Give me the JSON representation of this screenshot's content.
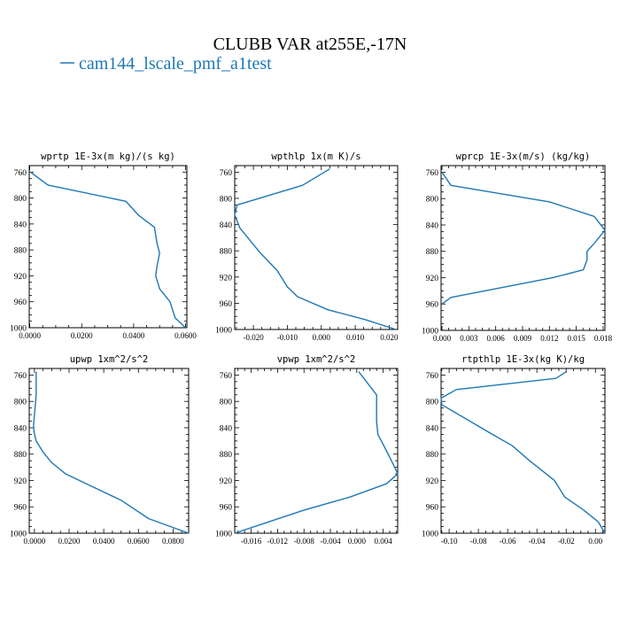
{
  "title": "CLUBB VAR at255E,-17N",
  "legend": {
    "label": "cam144_lscale_pmf_a1test",
    "color": "#1f77b4"
  },
  "colors": {
    "line": "#1f77b4",
    "axis": "#000000",
    "text": "#000000"
  },
  "chart_data": [
    {
      "type": "line",
      "title": "wprtp  1E-3x(m kg)/(s kg)",
      "xlim": [
        -0.0002,
        0.0605
      ],
      "ylim": [
        1000,
        750
      ],
      "xticks": [
        0.0,
        0.02,
        0.04,
        0.06
      ],
      "xtick_labels": [
        "0.0000",
        "0.0200",
        "0.0400",
        "0.0600"
      ],
      "yticks": [
        760,
        800,
        840,
        880,
        920,
        960,
        1000
      ],
      "series": [
        {
          "name": "cam144_lscale_pmf_a1test",
          "x": [
            0.0003,
            0.007,
            0.037,
            0.042,
            0.048,
            0.049,
            0.05,
            0.049,
            0.0485,
            0.05,
            0.054,
            0.056,
            0.06
          ],
          "y": [
            760,
            780,
            805,
            827,
            845,
            870,
            885,
            905,
            920,
            940,
            960,
            985,
            1000
          ]
        }
      ]
    },
    {
      "type": "line",
      "title": "wpthlp  1x(m K)/s",
      "xlim": [
        -0.0255,
        0.0225
      ],
      "ylim": [
        1000,
        750
      ],
      "xticks": [
        -0.02,
        -0.01,
        0.0,
        0.01,
        0.02
      ],
      "xtick_labels": [
        "-0.020",
        "-0.010",
        "0.000",
        "0.010",
        "0.020"
      ],
      "yticks": [
        760,
        800,
        840,
        880,
        920,
        960,
        1000
      ],
      "series": [
        {
          "name": "cam144_lscale_pmf_a1test",
          "x": [
            0.0025,
            -0.0055,
            -0.0248,
            -0.0255,
            -0.024,
            -0.018,
            -0.013,
            -0.01,
            -0.007,
            0.002,
            0.013,
            0.022
          ],
          "y": [
            755,
            780,
            810,
            825,
            845,
            883,
            910,
            935,
            950,
            970,
            985,
            1000
          ]
        }
      ]
    },
    {
      "type": "line",
      "title": "wprcp  1E-3x(m/s) (kg/kg)",
      "xlim": [
        -0.0001,
        0.0182
      ],
      "ylim": [
        1000,
        750
      ],
      "xticks": [
        0.0,
        0.003,
        0.006,
        0.009,
        0.012,
        0.015,
        0.018
      ],
      "xtick_labels": [
        "0.000",
        "0.003",
        "0.006",
        "0.009",
        "0.012",
        "0.015",
        "0.018"
      ],
      "yticks": [
        760,
        800,
        840,
        880,
        920,
        960,
        1000
      ],
      "series": [
        {
          "name": "cam144_lscale_pmf_a1test",
          "x": [
            0.0,
            0.001,
            0.012,
            0.017,
            0.0182,
            0.017,
            0.0162,
            0.0162,
            0.0158,
            0.0124,
            0.001,
            0.0
          ],
          "y": [
            760,
            780,
            805,
            827,
            848,
            868,
            880,
            893,
            908,
            920,
            950,
            960
          ]
        }
      ]
    },
    {
      "type": "line",
      "title": "upwp  1xm^2/s^2",
      "xlim": [
        -0.003,
        0.089
      ],
      "ylim": [
        1000,
        750
      ],
      "xticks": [
        0.0,
        0.02,
        0.04,
        0.06,
        0.08
      ],
      "xtick_labels": [
        "0.0000",
        "0.0200",
        "0.0400",
        "0.0600",
        "0.0800"
      ],
      "yticks": [
        760,
        800,
        840,
        880,
        920,
        960,
        1000
      ],
      "series": [
        {
          "name": "cam144_lscale_pmf_a1test",
          "x": [
            0.001,
            0.001,
            0.0003,
            -0.0005,
            -0.0003,
            0.001,
            0.005,
            0.01,
            0.018,
            0.03,
            0.05,
            0.066,
            0.089
          ],
          "y": [
            755,
            790,
            812,
            835,
            845,
            860,
            877,
            893,
            910,
            925,
            950,
            978,
            1000
          ]
        }
      ]
    },
    {
      "type": "line",
      "title": "vpwp  1xm^2/s^2",
      "xlim": [
        -0.0185,
        0.0062
      ],
      "ylim": [
        1000,
        750
      ],
      "xticks": [
        -0.016,
        -0.012,
        -0.008,
        -0.004,
        0.0,
        0.004
      ],
      "xtick_labels": [
        "-0.016",
        "-0.012",
        "-0.008",
        "-0.004",
        "0.000",
        "0.004"
      ],
      "yticks": [
        760,
        800,
        840,
        880,
        920,
        960,
        1000
      ],
      "series": [
        {
          "name": "cam144_lscale_pmf_a1test",
          "x": [
            0.0003,
            0.003,
            0.003,
            0.0032,
            0.0045,
            0.0055,
            0.0062,
            0.0045,
            -0.001,
            -0.008,
            -0.014,
            -0.0185
          ],
          "y": [
            755,
            790,
            830,
            850,
            875,
            895,
            910,
            925,
            945,
            965,
            985,
            1000
          ]
        }
      ]
    },
    {
      "type": "line",
      "title": "rtpthlp  1E-3x(kg K)/kg",
      "xlim": [
        -0.1055,
        0.0065
      ],
      "ylim": [
        1000,
        750
      ],
      "xticks": [
        -0.1,
        -0.08,
        -0.06,
        -0.04,
        -0.02,
        0.0
      ],
      "xtick_labels": [
        "-0.10",
        "-0.08",
        "-0.06",
        "-0.04",
        "-0.02",
        "0.00"
      ],
      "yticks": [
        760,
        800,
        840,
        880,
        920,
        960,
        1000
      ],
      "series": [
        {
          "name": "cam144_lscale_pmf_a1test",
          "x": [
            -0.02,
            -0.027,
            -0.095,
            -0.1055,
            -0.105,
            -0.072,
            -0.057,
            -0.045,
            -0.028,
            -0.021,
            -0.008,
            0.002,
            0.0065
          ],
          "y": [
            755,
            765,
            782,
            795,
            805,
            848,
            867,
            890,
            920,
            945,
            965,
            983,
            1000
          ]
        }
      ]
    }
  ]
}
